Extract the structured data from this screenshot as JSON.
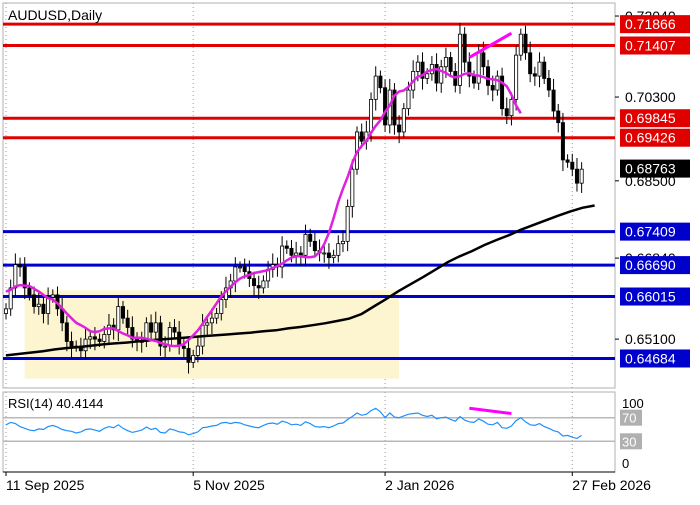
{
  "chart_data": {
    "type": "candlestick",
    "title": "AUDUSD,Daily",
    "colors": {
      "bull": "#000000",
      "bear": "#000000",
      "ma_fast": "#e020e0",
      "ma_slow": "#000000",
      "resistance": "#e00000",
      "support": "#0000cc",
      "range_box": "#fdf5d0",
      "divergence": "#ff00ff",
      "rsi_line": "#1e90ff"
    },
    "y_axis": {
      "min": 0.6405,
      "max": 0.7232,
      "ticks": [
        "0.72040",
        "0.70300",
        "0.68500",
        "0.66840",
        "0.65100"
      ],
      "tick_values": [
        0.7204,
        0.703,
        0.685,
        0.6684,
        0.651
      ]
    },
    "x_axis": {
      "labels": [
        "11 Sep 2025",
        "5 Nov 2025",
        "2 Jan 2026",
        "27 Feb 2026"
      ],
      "label_bars": [
        0,
        40,
        81,
        121
      ]
    },
    "resistance_levels": [
      {
        "label": "0.71866",
        "value": 0.71866
      },
      {
        "label": "0.71407",
        "value": 0.71407
      },
      {
        "label": "0.69845",
        "value": 0.69845
      },
      {
        "label": "0.69426",
        "value": 0.69426
      }
    ],
    "support_levels": [
      {
        "label": "0.67409",
        "value": 0.67409
      },
      {
        "label": "0.66690",
        "value": 0.6669
      },
      {
        "label": "0.66015",
        "value": 0.66015
      },
      {
        "label": "0.64684",
        "value": 0.64684
      }
    ],
    "current_price": {
      "label": "0.68763",
      "value": 0.68763
    },
    "range_box": {
      "start_bar": 4,
      "end_bar": 84,
      "low": 0.6425,
      "high": 0.6615
    },
    "price_divergence": {
      "start_bar": 99,
      "end_bar": 108,
      "start_value": 0.7115,
      "end_value": 0.7167
    },
    "price_closes": [
      0.6575,
      0.662,
      0.667,
      0.6665,
      0.662,
      0.6605,
      0.658,
      0.6585,
      0.6565,
      0.66,
      0.6605,
      0.6575,
      0.6545,
      0.6505,
      0.6495,
      0.6495,
      0.6485,
      0.651,
      0.6515,
      0.651,
      0.6505,
      0.652,
      0.654,
      0.653,
      0.658,
      0.6555,
      0.6535,
      0.651,
      0.6505,
      0.6505,
      0.6545,
      0.6525,
      0.6545,
      0.6495,
      0.6495,
      0.6535,
      0.6525,
      0.6495,
      0.649,
      0.646,
      0.6475,
      0.6495,
      0.654,
      0.6545,
      0.6555,
      0.6565,
      0.6595,
      0.662,
      0.6635,
      0.6665,
      0.6665,
      0.6655,
      0.664,
      0.6625,
      0.662,
      0.6635,
      0.666,
      0.667,
      0.6665,
      0.671,
      0.6705,
      0.669,
      0.6695,
      0.669,
      0.6735,
      0.672,
      0.67,
      0.6695,
      0.6695,
      0.6685,
      0.669,
      0.6715,
      0.672,
      0.6795,
      0.6875,
      0.6955,
      0.6935,
      0.6955,
      0.7025,
      0.7075,
      0.705,
      0.697,
      0.7045,
      0.697,
      0.6955,
      0.7005,
      0.7045,
      0.7085,
      0.7105,
      0.707,
      0.708,
      0.71,
      0.706,
      0.7095,
      0.7115,
      0.7085,
      0.7055,
      0.7165,
      0.7105,
      0.7075,
      0.706,
      0.7125,
      0.7095,
      0.7055,
      0.7045,
      0.7075,
      0.7005,
      0.699,
      0.7025,
      0.712,
      0.7165,
      0.7125,
      0.708,
      0.7075,
      0.7105,
      0.707,
      0.7045,
      0.7,
      0.6975,
      0.6895,
      0.689,
      0.6875,
      0.6845,
      0.6875
    ],
    "ma_fast_values": [
      0.6612,
      0.6616,
      0.6623,
      0.6626,
      0.6625,
      0.6624,
      0.6618,
      0.6612,
      0.6605,
      0.6598,
      0.6595,
      0.6587,
      0.6576,
      0.6565,
      0.6555,
      0.6545,
      0.654,
      0.6534,
      0.6527,
      0.6525,
      0.6527,
      0.6532,
      0.6533,
      0.6533,
      0.6527,
      0.6522,
      0.6518,
      0.6513,
      0.6513,
      0.6513,
      0.6511,
      0.6508,
      0.6506,
      0.6502,
      0.6499,
      0.6496,
      0.6495,
      0.6496,
      0.6499,
      0.6508,
      0.6518,
      0.6529,
      0.6543,
      0.6558,
      0.6572,
      0.6587,
      0.6602,
      0.6613,
      0.6623,
      0.6632,
      0.664,
      0.6645,
      0.6648,
      0.6652,
      0.6654,
      0.6656,
      0.6658,
      0.6663,
      0.6667,
      0.6672,
      0.6679,
      0.6685,
      0.6688,
      0.6688,
      0.6686,
      0.6686,
      0.6688,
      0.6697,
      0.6714,
      0.6738,
      0.677,
      0.6805,
      0.6833,
      0.6858,
      0.6888,
      0.6912,
      0.6925,
      0.6936,
      0.6953,
      0.6968,
      0.698,
      0.6998,
      0.7012,
      0.7033,
      0.7042,
      0.7044,
      0.7052,
      0.7064,
      0.7074,
      0.7077,
      0.7085,
      0.7088,
      0.709,
      0.7086,
      0.7082,
      0.7075,
      0.7072,
      0.7075,
      0.708,
      0.7081,
      0.7077,
      0.7076,
      0.7073,
      0.7069,
      0.7068,
      0.7066,
      0.7061,
      0.7053,
      0.7035,
      0.7012,
      0.6995
    ],
    "ma_fast_start_bar": 0,
    "ma_slow_values": [
      0.6475,
      0.6478,
      0.6481,
      0.6484,
      0.6488,
      0.6491,
      0.6493,
      0.6496,
      0.6499,
      0.6501,
      0.6503,
      0.6506,
      0.6508,
      0.651,
      0.6512,
      0.6514,
      0.6516,
      0.6518,
      0.652,
      0.6522,
      0.6524,
      0.6527,
      0.6529,
      0.6533,
      0.6536,
      0.654,
      0.6544,
      0.6549,
      0.6554,
      0.6564,
      0.658,
      0.6596,
      0.6613,
      0.6628,
      0.6643,
      0.6659,
      0.6675,
      0.6688,
      0.6699,
      0.6712,
      0.6723,
      0.6733,
      0.6745,
      0.6755,
      0.6765,
      0.6775,
      0.6784,
      0.6792,
      0.6797
    ],
    "ma_slow_step": 2.62,
    "rsi": {
      "label": "RSI(14) 40.4144",
      "min": 0,
      "max": 100,
      "levels": [
        70,
        30
      ],
      "level_labels": [
        "70",
        "30"
      ],
      "axis_ticks": [
        "100",
        "0"
      ],
      "values": [
        58,
        62,
        60,
        55,
        52,
        49,
        48,
        51,
        50,
        55,
        57,
        54,
        50,
        48,
        47,
        44,
        46,
        50,
        51,
        49,
        47,
        52,
        55,
        53,
        58,
        52,
        48,
        45,
        47,
        49,
        54,
        50,
        52,
        45,
        44,
        51,
        49,
        46,
        45,
        41,
        43,
        46,
        53,
        54,
        56,
        57,
        61,
        62,
        60,
        62,
        61,
        58,
        56,
        54,
        53,
        57,
        60,
        61,
        59,
        64,
        62,
        58,
        59,
        57,
        63,
        60,
        55,
        54,
        55,
        53,
        56,
        60,
        61,
        67,
        72,
        78,
        74,
        76,
        82,
        86,
        80,
        70,
        78,
        71,
        70,
        73,
        76,
        77,
        78,
        74,
        72,
        74,
        68,
        70,
        71,
        67,
        64,
        72,
        66,
        63,
        62,
        68,
        64,
        59,
        58,
        62,
        53,
        52,
        56,
        65,
        70,
        63,
        58,
        57,
        60,
        55,
        52,
        48,
        46,
        39,
        40,
        37,
        35,
        40
      ],
      "divergence": {
        "start_bar": 99,
        "end_bar": 108,
        "start_value": 86,
        "end_value": 77
      }
    }
  }
}
